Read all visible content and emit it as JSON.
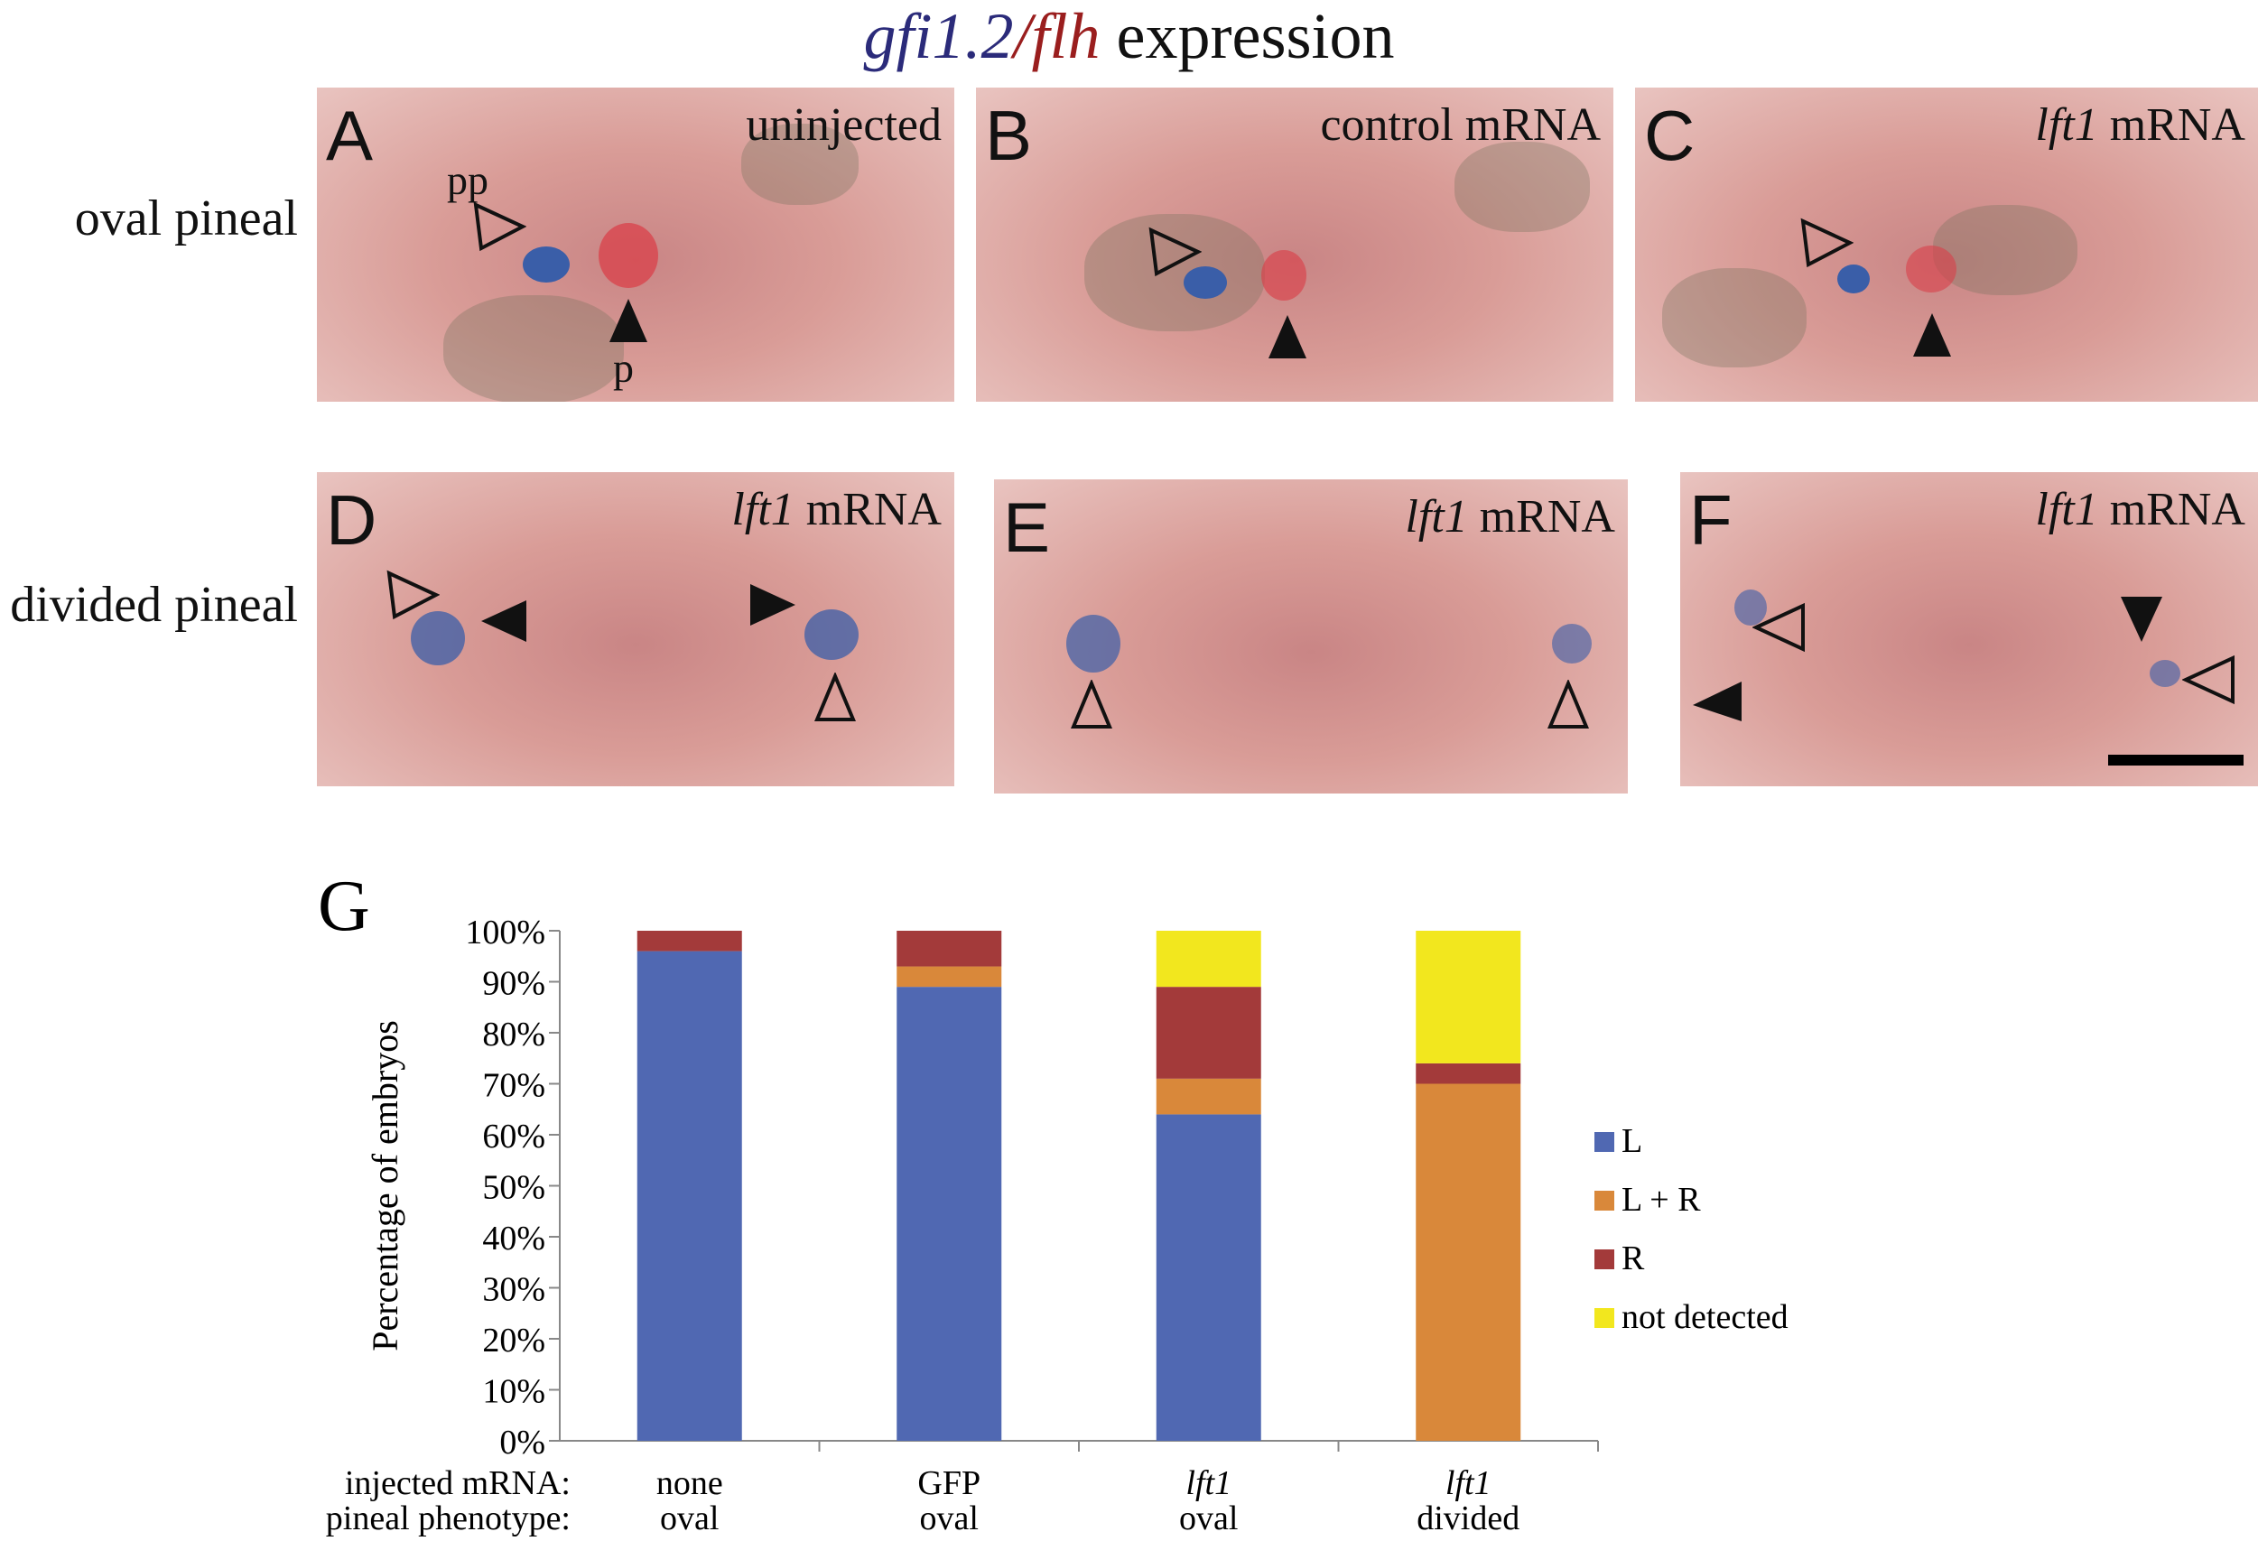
{
  "figure_title": {
    "gene1": "gfi1.2",
    "sep": "/",
    "gene2": "flh",
    "rest": " expression"
  },
  "row_labels": [
    "oval pineal",
    "divided pineal"
  ],
  "panels": [
    {
      "letter": "A",
      "condition": "uninjected",
      "cond_italic": "",
      "labels": {
        "pp": "pp",
        "p": "p"
      }
    },
    {
      "letter": "B",
      "condition": "control mRNA",
      "cond_italic": ""
    },
    {
      "letter": "C",
      "condition": " mRNA",
      "cond_italic": "lft1"
    },
    {
      "letter": "D",
      "condition": " mRNA",
      "cond_italic": "lft1"
    },
    {
      "letter": "E",
      "condition": " mRNA",
      "cond_italic": "lft1"
    },
    {
      "letter": "F",
      "condition": " mRNA",
      "cond_italic": "lft1"
    }
  ],
  "panel_g_letter": "G",
  "colors": {
    "L": "#5068b2",
    "L + R": "#d9883a",
    "R": "#a33a3a",
    "not detected": "#f2e71e",
    "probe_blue": "#3a5ea8",
    "probe_red": "#d9404a"
  },
  "chart_data": {
    "type": "bar",
    "stacked": true,
    "ylabel": "Percentage of embryos",
    "yticks": [
      "0%",
      "10%",
      "20%",
      "30%",
      "40%",
      "50%",
      "60%",
      "70%",
      "80%",
      "90%",
      "100%"
    ],
    "ylim": [
      0,
      100
    ],
    "row_headers": [
      "injected mRNA:",
      "pineal phenotype:"
    ],
    "categories": [
      {
        "mrna": "none",
        "phenotype": "oval",
        "italic": false
      },
      {
        "mrna": "GFP",
        "phenotype": "oval",
        "italic": false
      },
      {
        "mrna": "lft1",
        "phenotype": "oval",
        "italic": true
      },
      {
        "mrna": "lft1",
        "phenotype": "divided",
        "italic": true
      }
    ],
    "series": [
      {
        "name": "L",
        "values": [
          96,
          89,
          64,
          0
        ]
      },
      {
        "name": "L + R",
        "values": [
          0,
          4,
          7,
          70
        ]
      },
      {
        "name": "R",
        "values": [
          4,
          7,
          18,
          4
        ]
      },
      {
        "name": "not detected",
        "values": [
          0,
          0,
          11,
          26
        ]
      }
    ],
    "legend": "right"
  }
}
